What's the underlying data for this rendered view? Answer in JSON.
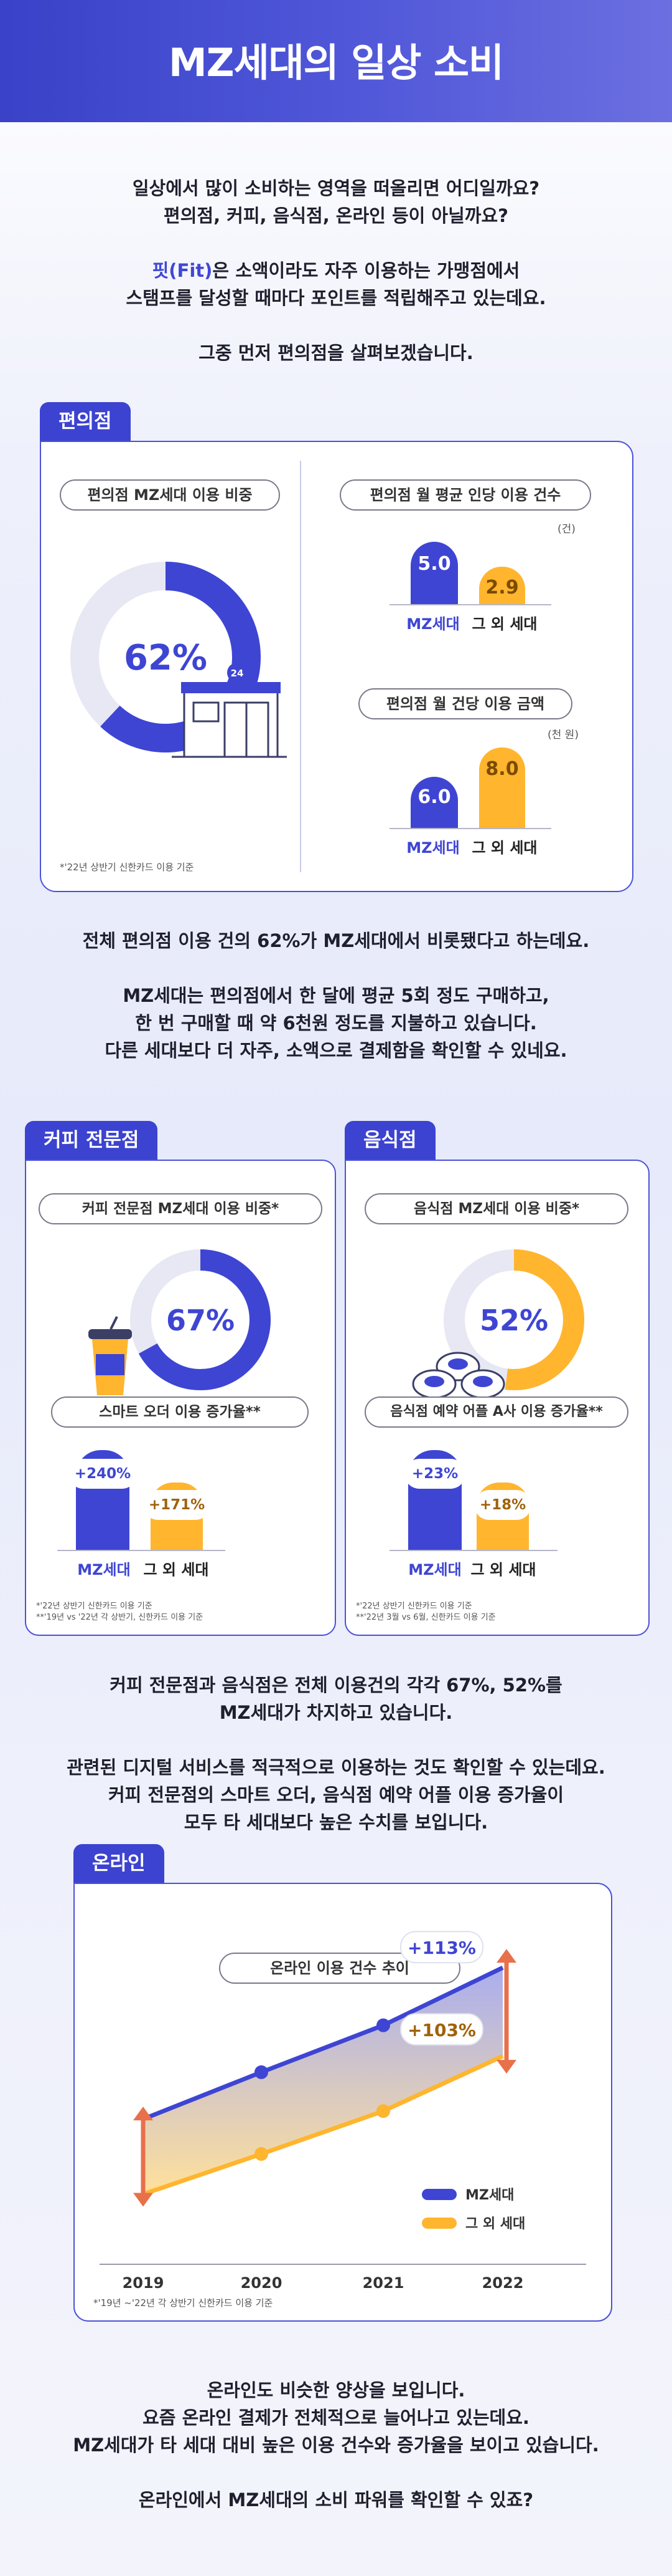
{
  "header": {
    "title": "MZ세대의 일상 소비"
  },
  "intro": {
    "line1": "일상에서 많이 소비하는 영역을 떠올리면 어디일까요?",
    "line2": "편의점, 커피, 음식점, 온라인 등이 아닐까요?",
    "line3_accent": "핏(Fit)",
    "line3_rest": "은 소액이라도 자주 이용하는 가맹점에서",
    "line4": "스탬프를 달성할 때마다 포인트를 적립해주고 있는데요.",
    "line5": "그중 먼저 편의점을 살펴보겠습니다."
  },
  "convenience": {
    "tag": "편의점",
    "share_title": "편의점 MZ세대 이용 비중",
    "share_value": "62%",
    "share_fraction": 0.62,
    "store_badge": "24",
    "note": "*'22년 상반기 신한카드 이용 기준",
    "count_title": "편의점 월 평균 인당 이용 건수",
    "count_unit": "(건)",
    "count_mz": "5.0",
    "count_other": "2.9",
    "amount_title": "편의점 월 건당 이용 금액",
    "amount_unit": "(천 원)",
    "amount_mz": "6.0",
    "amount_other": "8.0",
    "label_mz": "MZ세대",
    "label_other": "그 외 세대"
  },
  "conv_text": {
    "line1": "전체 편의점 이용 건의 62%가 MZ세대에서 비롯됐다고 하는데요.",
    "line2": "MZ세대는 편의점에서 한 달에 평균 5회 정도 구매하고,",
    "line3": "한 번 구매할 때 약 6천원 정도를 지불하고 있습니다.",
    "line4": "다른 세대보다 더 자주, 소액으로 결제함을 확인할 수 있네요."
  },
  "coffee": {
    "tag": "커피 전문점",
    "share_title": "커피 전문점 MZ세대 이용 비중*",
    "share_value": "67%",
    "share_fraction": 0.67,
    "growth_title": "스마트 오더 이용 증가율**",
    "growth_mz": "+240%",
    "growth_other": "+171%",
    "label_mz": "MZ세대",
    "label_other": "그 외 세대",
    "note1": "*'22년 상반기 신한카드 이용 기준",
    "note2": "**'19년 vs '22년 각 상반기, 신한카드 이용 기준"
  },
  "restaurant": {
    "tag": "음식점",
    "share_title": "음식점 MZ세대 이용 비중*",
    "share_value": "52%",
    "share_fraction": 0.52,
    "growth_title": "음식점 예약 어플 A사 이용 증가율**",
    "growth_mz": "+23%",
    "growth_other": "+18%",
    "label_mz": "MZ세대",
    "label_other": "그 외 세대",
    "note1": "*'22년 상반기 신한카드 이용 기준",
    "note2": "**'22년 3월 vs 6월, 신한카드 이용 기준"
  },
  "mid_text": {
    "line1": "커피 전문점과 음식점은 전체 이용건의 각각 67%, 52%를",
    "line2": "MZ세대가 차지하고 있습니다.",
    "line3": "관련된 디지털 서비스를 적극적으로 이용하는 것도 확인할 수 있는데요.",
    "line4": "커피 전문점의 스마트 오더, 음식점 예약 어플 이용 증가율이",
    "line5": "모두 타 세대보다 높은 수치를 보입니다."
  },
  "online": {
    "tag": "온라인",
    "title": "온라인 이용 건수 추이",
    "mz_growth": "+113%",
    "other_growth": "+103%",
    "legend_mz": "MZ세대",
    "legend_other": "그 외 세대",
    "note": "*'19년 ~'22년 각 상반기 신한카드 이용 기준",
    "colors": {
      "mz": "#3e45d3",
      "other": "#ffb52e",
      "arrow": "#e8704a"
    }
  },
  "chart_data": {
    "type": "line",
    "title": "온라인 이용 건수 추이",
    "x": [
      "2019",
      "2020",
      "2021",
      "2022"
    ],
    "series": [
      {
        "name": "MZ세대",
        "values": [
          1.0,
          1.35,
          1.7,
          2.13
        ]
      },
      {
        "name": "그 외 세대",
        "values": [
          1.0,
          1.3,
          1.62,
          2.03
        ]
      }
    ],
    "annotations": [
      "+113%",
      "+103%"
    ],
    "legend": "bottom-right"
  },
  "outro": {
    "line1": "온라인도 비슷한 양상을 보입니다.",
    "line2": "요즘 온라인 결제가 전체적으로 늘어나고 있는데요.",
    "line3": "MZ세대가 타 세대 대비 높은 이용 건수와 증가율을 보이고 있습니다.",
    "line4": "온라인에서 MZ세대의 소비 파워를 확인할 수 있죠?"
  }
}
